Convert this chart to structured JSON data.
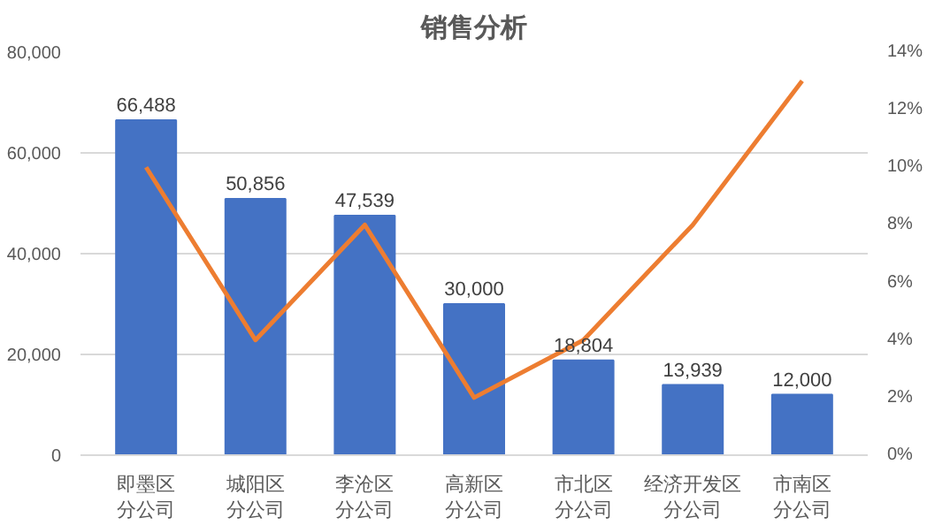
{
  "chart_data": {
    "type": "bar",
    "title": "销售分析",
    "categories": [
      "即墨区分公司",
      "城阳区分公司",
      "李沧区分公司",
      "高新区分公司",
      "市北区分公司",
      "经济开发区分公司",
      "市南区分公司"
    ],
    "series": [
      {
        "color": "#4472c4",
        "values": [
          66488,
          50856,
          47539,
          30000,
          18804,
          13939,
          12000
        ],
        "value_labels": [
          "66,488",
          "50,856",
          "47,539",
          "30,000",
          "18,804",
          "13,939",
          "12,000"
        ]
      },
      {
        "type": "line",
        "axis": "y2",
        "color": "#ed7d31",
        "values": [
          10,
          4,
          8,
          2,
          4,
          8,
          13
        ]
      }
    ],
    "ylim": [
      0,
      80000
    ],
    "yticks": [
      {
        "value": 0,
        "label": "0"
      },
      {
        "value": 20000,
        "label": "20,000"
      },
      {
        "value": 40000,
        "label": "40,000"
      },
      {
        "value": 60000,
        "label": "60,000"
      },
      {
        "value": 80000,
        "label": "80,000"
      }
    ],
    "y2lim": [
      0,
      14
    ],
    "y2ticks": [
      {
        "value": 0,
        "label": "0%"
      },
      {
        "value": 2,
        "label": "2%"
      },
      {
        "value": 4,
        "label": "4%"
      },
      {
        "value": 6,
        "label": "6%"
      },
      {
        "value": 8,
        "label": "8%"
      },
      {
        "value": 10,
        "label": "10%"
      },
      {
        "value": 12,
        "label": "12%"
      },
      {
        "value": 14,
        "label": "14%"
      }
    ],
    "grid": "y"
  }
}
